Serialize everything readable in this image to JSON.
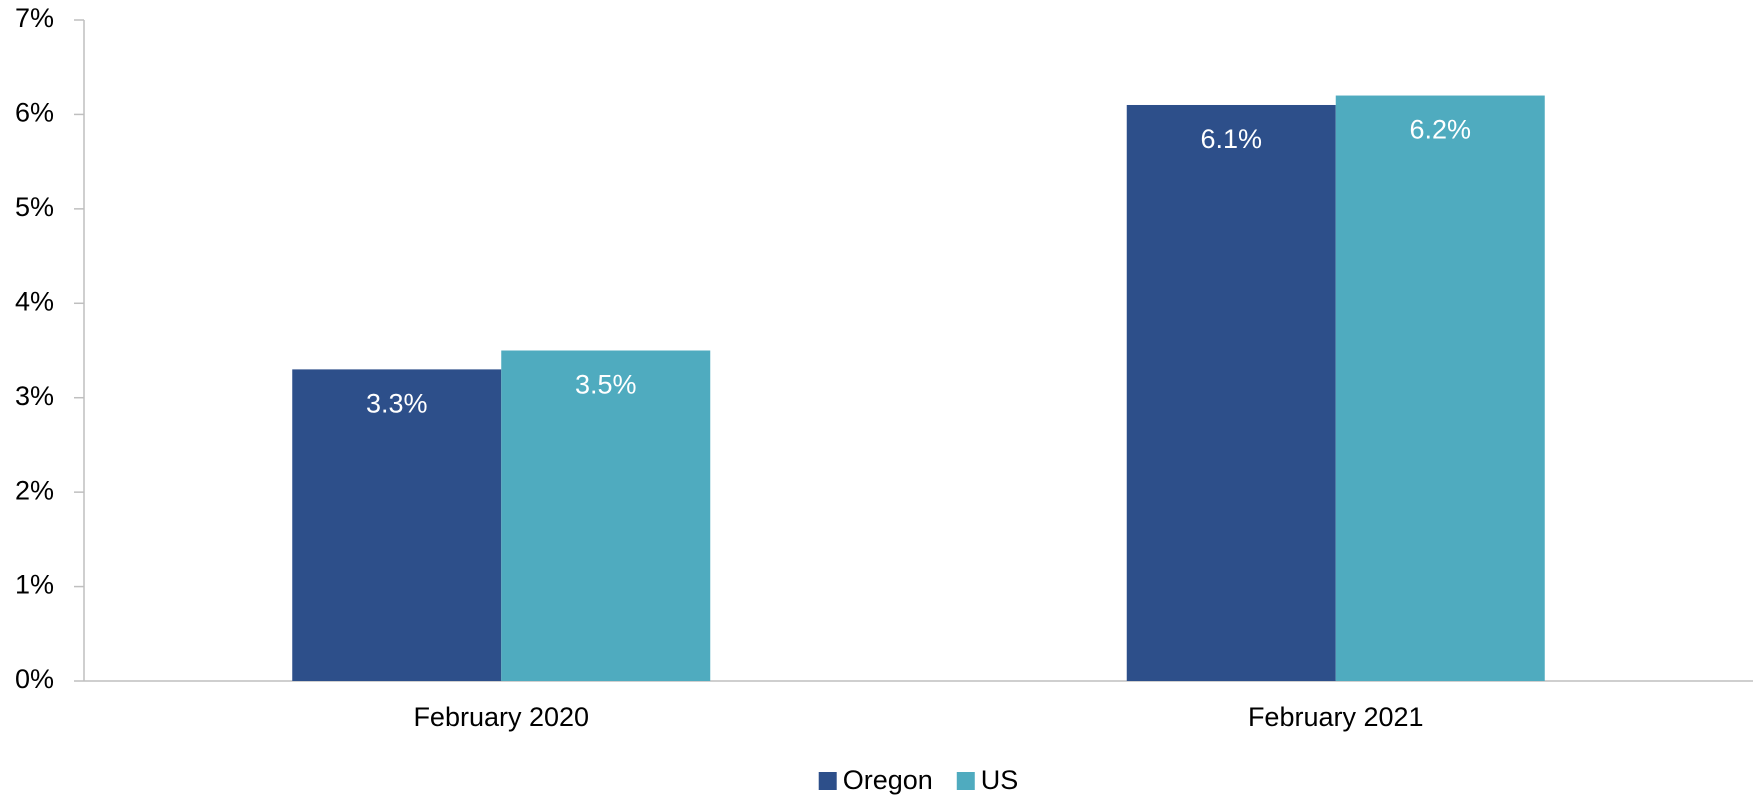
{
  "chart_data": {
    "type": "bar",
    "categories": [
      "February 2020",
      "February 2021"
    ],
    "series": [
      {
        "name": "Oregon",
        "color": "#2d4f8a",
        "values": [
          3.3,
          6.1
        ],
        "value_labels": [
          "3.3%",
          "6.1%"
        ]
      },
      {
        "name": "US",
        "color": "#4fabbf",
        "values": [
          3.5,
          6.2
        ],
        "value_labels": [
          "3.5%",
          "6.2%"
        ]
      }
    ],
    "ylim": [
      0,
      7
    ],
    "yticks": [
      {
        "value": 0,
        "label": "0%"
      },
      {
        "value": 1,
        "label": "1%"
      },
      {
        "value": 2,
        "label": "2%"
      },
      {
        "value": 3,
        "label": "3%"
      },
      {
        "value": 4,
        "label": "4%"
      },
      {
        "value": 5,
        "label": "5%"
      },
      {
        "value": 6,
        "label": "6%"
      },
      {
        "value": 7,
        "label": "7%"
      }
    ],
    "grid": false,
    "legend": "bottom"
  }
}
